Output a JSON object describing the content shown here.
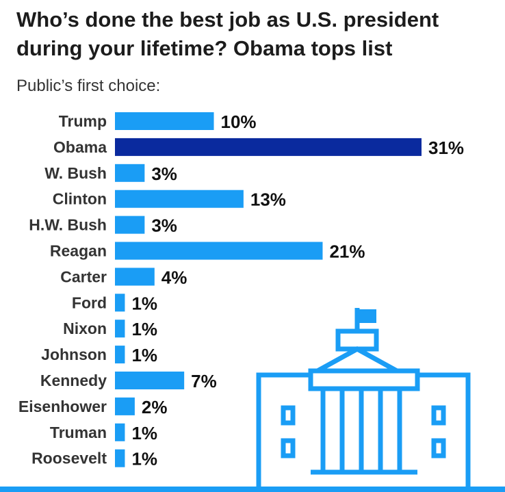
{
  "header": {
    "title": "Who’s done the best job as U.S. president during your lifetime? Obama tops list",
    "subtitle": "Public’s first choice:"
  },
  "colors": {
    "bar": "#1a9df5",
    "highlight": "#0a2a9e",
    "text": "#1c1c1c",
    "label": "#333333"
  },
  "icon": "white-house-icon",
  "chart_data": {
    "type": "bar",
    "orientation": "horizontal",
    "title": "Who’s done the best job as U.S. president during your lifetime? Obama tops list",
    "subtitle": "Public’s first choice:",
    "xlabel": "",
    "ylabel": "",
    "unit": "%",
    "xlim": [
      0,
      31
    ],
    "highlight": "Obama",
    "categories": [
      "Trump",
      "Obama",
      "W. Bush",
      "Clinton",
      "H.W. Bush",
      "Reagan",
      "Carter",
      "Ford",
      "Nixon",
      "Johnson",
      "Kennedy",
      "Eisenhower",
      "Truman",
      "Roosevelt"
    ],
    "values": [
      10,
      31,
      3,
      13,
      3,
      21,
      4,
      1,
      1,
      1,
      7,
      2,
      1,
      1
    ],
    "labels": [
      "10%",
      "31%",
      "3%",
      "13%",
      "3%",
      "21%",
      "4%",
      "1%",
      "1%",
      "1%",
      "7%",
      "2%",
      "1%",
      "1%"
    ]
  }
}
